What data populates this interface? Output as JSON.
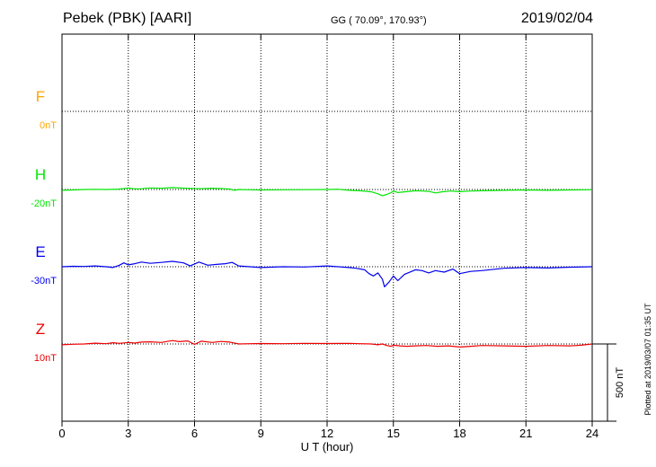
{
  "header": {
    "station": "Pebek (PBK)  [AARI]",
    "coords": "GG ( 70.09°, 170.93°)",
    "date": "2019/02/04"
  },
  "plotted_note": "Plotted at 2019/03/07 01:35 UT",
  "scale_label": "500 nT",
  "chart_data": {
    "type": "line",
    "xlabel": "U T (hour)",
    "xlim": [
      0,
      24
    ],
    "xticks": [
      0,
      3,
      6,
      9,
      12,
      15,
      18,
      21,
      24
    ],
    "grid": true,
    "scale_bar_nT": 500,
    "series": [
      {
        "name": "F",
        "offset_label": "0nT",
        "color": "#ffa500",
        "x": [],
        "y": []
      },
      {
        "name": "H",
        "offset_label": "-20nT",
        "color": "#00e600",
        "x": [
          0,
          0.5,
          1,
          1.5,
          2,
          2.5,
          2.8,
          3,
          3.2,
          3.5,
          4,
          4.5,
          5,
          5.5,
          6,
          6.3,
          6.8,
          7.2,
          7.6,
          7.8,
          8,
          8.5,
          9,
          10,
          11,
          12,
          12.5,
          13,
          13.5,
          14,
          14.3,
          14.5,
          14.7,
          14.9,
          15,
          15.2,
          15.5,
          16,
          16.3,
          16.6,
          16.9,
          17.2,
          17.6,
          18,
          18.5,
          19,
          20,
          21,
          22,
          23,
          24
        ],
        "y": [
          -5,
          -3,
          0,
          1,
          0,
          2,
          6,
          10,
          5,
          4,
          10,
          8,
          12,
          9,
          6,
          5,
          8,
          6,
          3,
          -5,
          0,
          -2,
          -3,
          -2,
          -1,
          0,
          2,
          -5,
          -8,
          -15,
          -28,
          -40,
          -32,
          -20,
          -10,
          -20,
          -15,
          -8,
          -10,
          -12,
          -22,
          -15,
          -10,
          -14,
          -10,
          -8,
          -5,
          -3,
          -5,
          -3,
          -1
        ]
      },
      {
        "name": "E",
        "offset_label": "-30nT",
        "color": "#0000ee",
        "x": [
          0,
          0.5,
          1,
          1.5,
          2,
          2.3,
          2.6,
          2.8,
          3,
          3.3,
          3.6,
          4,
          4.5,
          5,
          5.5,
          5.8,
          6.2,
          6.6,
          7,
          7.4,
          7.7,
          8,
          8.5,
          9,
          10,
          11,
          12,
          12.5,
          13,
          13.3,
          13.7,
          13.9,
          14.1,
          14.3,
          14.5,
          14.6,
          14.8,
          15,
          15.2,
          15.5,
          16,
          16.3,
          16.6,
          16.9,
          17.3,
          17.7,
          18,
          18.5,
          19,
          20,
          21,
          22,
          23,
          24
        ],
        "y": [
          0,
          3,
          2,
          5,
          0,
          -5,
          10,
          25,
          12,
          20,
          30,
          22,
          28,
          35,
          25,
          5,
          30,
          10,
          15,
          20,
          28,
          5,
          0,
          -5,
          0,
          -2,
          5,
          0,
          -5,
          -10,
          -20,
          -45,
          -60,
          -40,
          -80,
          -130,
          -100,
          -60,
          -90,
          -50,
          -20,
          -25,
          -40,
          -25,
          -35,
          -15,
          -45,
          -30,
          -25,
          -10,
          -5,
          -8,
          -3,
          0
        ]
      },
      {
        "name": "Z",
        "offset_label": "10nT",
        "color": "#ee0000",
        "x": [
          0,
          0.5,
          1,
          1.5,
          2,
          2.3,
          2.6,
          3,
          3.3,
          3.6,
          4,
          4.5,
          5,
          5.3,
          5.7,
          6,
          6.3,
          6.8,
          7.2,
          7.6,
          8,
          8.5,
          9,
          10,
          11,
          12,
          13,
          13.5,
          14,
          14.3,
          14.5,
          14.7,
          14.9,
          15,
          15.3,
          15.6,
          16,
          16.5,
          17,
          17.5,
          18,
          18.5,
          19,
          20,
          21,
          22,
          23,
          23.5,
          24
        ],
        "y": [
          -5,
          -2,
          0,
          5,
          2,
          8,
          4,
          10,
          6,
          12,
          14,
          10,
          22,
          15,
          20,
          -3,
          18,
          10,
          16,
          12,
          0,
          2,
          3,
          2,
          4,
          3,
          4,
          2,
          0,
          -5,
          0,
          -10,
          -15,
          -8,
          -12,
          -15,
          -12,
          -10,
          -15,
          -12,
          -20,
          -15,
          -10,
          -12,
          -15,
          -10,
          -12,
          -8,
          0
        ]
      }
    ]
  }
}
